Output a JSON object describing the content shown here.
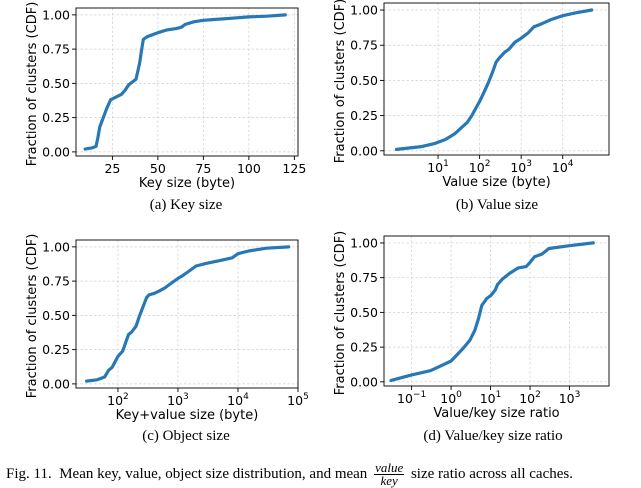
{
  "figure": {
    "caption_prefix": "Fig. 11.",
    "caption_main": "Mean key, value, object size distribution, and mean",
    "caption_frac_num": "value",
    "caption_frac_den": "key",
    "caption_tail": "size ratio across all caches."
  },
  "chart_data": [
    {
      "type": "line",
      "subcaption": "(a) Key size",
      "xlabel": "Key size (byte)",
      "ylabel": "Fraction of clusters (CDF)",
      "xscale": "linear",
      "xlim": [
        5,
        127
      ],
      "ylim": [
        -0.03,
        1.05
      ],
      "xticks": [
        25,
        50,
        75,
        100,
        125
      ],
      "xtick_labels": [
        "25",
        "50",
        "75",
        "100",
        "125"
      ],
      "yticks": [
        0,
        0.25,
        0.5,
        0.75,
        1.0
      ],
      "ytick_labels": [
        "0.00",
        "0.25",
        "0.50",
        "0.75",
        "1.00"
      ],
      "grid": true,
      "series": [
        {
          "x": [
            10,
            14,
            16,
            17,
            18,
            20,
            22,
            24,
            27,
            30,
            32,
            34,
            36,
            37,
            38,
            40,
            41,
            42,
            43,
            44,
            46,
            50,
            55,
            60,
            63,
            65,
            70,
            75,
            80,
            90,
            100,
            110,
            120
          ],
          "y": [
            0.02,
            0.03,
            0.04,
            0.1,
            0.18,
            0.25,
            0.32,
            0.38,
            0.4,
            0.42,
            0.45,
            0.49,
            0.51,
            0.52,
            0.53,
            0.65,
            0.74,
            0.82,
            0.83,
            0.84,
            0.85,
            0.87,
            0.89,
            0.9,
            0.91,
            0.93,
            0.95,
            0.96,
            0.965,
            0.975,
            0.985,
            0.99,
            1.0
          ]
        }
      ]
    },
    {
      "type": "line",
      "subcaption": "(b) Value size",
      "xlabel": "Value size (byte)",
      "ylabel": "Fraction of clusters (CDF)",
      "xscale": "log",
      "xlim": [
        0.5,
        130000
      ],
      "ylim": [
        -0.03,
        1.05
      ],
      "xticks": [
        10,
        100,
        1000,
        10000
      ],
      "xtick_labels": [
        "10",
        "10",
        "10",
        "10"
      ],
      "xtick_exps": [
        "1",
        "2",
        "3",
        "4"
      ],
      "yticks": [
        0,
        0.25,
        0.5,
        0.75,
        1.0
      ],
      "ytick_labels": [
        "0.00",
        "0.25",
        "0.50",
        "0.75",
        "1.00"
      ],
      "grid": true,
      "series": [
        {
          "x": [
            1,
            2,
            4,
            8,
            15,
            25,
            35,
            50,
            65,
            80,
            100,
            130,
            160,
            200,
            250,
            300,
            400,
            500,
            700,
            1000,
            1500,
            2000,
            3000,
            5000,
            10000,
            20000,
            50000
          ],
          "y": [
            0.01,
            0.02,
            0.03,
            0.05,
            0.08,
            0.12,
            0.16,
            0.2,
            0.25,
            0.3,
            0.35,
            0.42,
            0.48,
            0.55,
            0.63,
            0.66,
            0.7,
            0.72,
            0.77,
            0.8,
            0.84,
            0.88,
            0.9,
            0.93,
            0.96,
            0.98,
            1.0
          ]
        }
      ]
    },
    {
      "type": "line",
      "subcaption": "(c) Object size",
      "xlabel": "Key+value size (byte)",
      "ylabel": "Fraction of clusters (CDF)",
      "xscale": "log",
      "xlim": [
        20,
        100000
      ],
      "ylim": [
        -0.03,
        1.05
      ],
      "xticks": [
        100,
        1000,
        10000,
        100000
      ],
      "xtick_labels": [
        "10",
        "10",
        "10",
        "10"
      ],
      "xtick_exps": [
        "2",
        "3",
        "4",
        "5"
      ],
      "yticks": [
        0,
        0.25,
        0.5,
        0.75,
        1.0
      ],
      "ytick_labels": [
        "0.00",
        "0.25",
        "0.50",
        "0.75",
        "1.00"
      ],
      "grid": true,
      "series": [
        {
          "x": [
            30,
            45,
            60,
            70,
            80,
            100,
            120,
            150,
            170,
            200,
            230,
            260,
            300,
            330,
            400,
            500,
            600,
            800,
            1000,
            1200,
            1500,
            2000,
            3000,
            5000,
            8000,
            10000,
            15000,
            30000,
            70000
          ],
          "y": [
            0.02,
            0.03,
            0.05,
            0.1,
            0.12,
            0.2,
            0.24,
            0.36,
            0.38,
            0.42,
            0.5,
            0.56,
            0.63,
            0.65,
            0.66,
            0.68,
            0.7,
            0.74,
            0.77,
            0.79,
            0.82,
            0.86,
            0.88,
            0.9,
            0.92,
            0.95,
            0.97,
            0.99,
            1.0
          ]
        }
      ]
    },
    {
      "type": "line",
      "subcaption": "(d) Value/key size ratio",
      "xlabel": "Value/key size ratio",
      "ylabel": "Fraction of clusters (CDF)",
      "xscale": "log",
      "xlim": [
        0.02,
        10000
      ],
      "ylim": [
        -0.03,
        1.05
      ],
      "xticks": [
        0.1,
        1,
        10,
        100,
        1000
      ],
      "xtick_labels": [
        "10",
        "10",
        "10",
        "10",
        "10"
      ],
      "xtick_exps": [
        "−1",
        "0",
        "1",
        "2",
        "3"
      ],
      "yticks": [
        0,
        0.25,
        0.5,
        0.75,
        1.0
      ],
      "ytick_labels": [
        "0.00",
        "0.25",
        "0.50",
        "0.75",
        "1.00"
      ],
      "grid": true,
      "series": [
        {
          "x": [
            0.03,
            0.1,
            0.3,
            0.6,
            1,
            2,
            3,
            4,
            5,
            6,
            8,
            10,
            13,
            15,
            20,
            30,
            50,
            80,
            100,
            130,
            200,
            300,
            1000,
            4000
          ],
          "y": [
            0.01,
            0.05,
            0.08,
            0.12,
            0.15,
            0.24,
            0.3,
            0.37,
            0.46,
            0.55,
            0.6,
            0.62,
            0.66,
            0.7,
            0.74,
            0.78,
            0.82,
            0.83,
            0.86,
            0.9,
            0.92,
            0.96,
            0.98,
            1.0
          ]
        }
      ]
    }
  ]
}
